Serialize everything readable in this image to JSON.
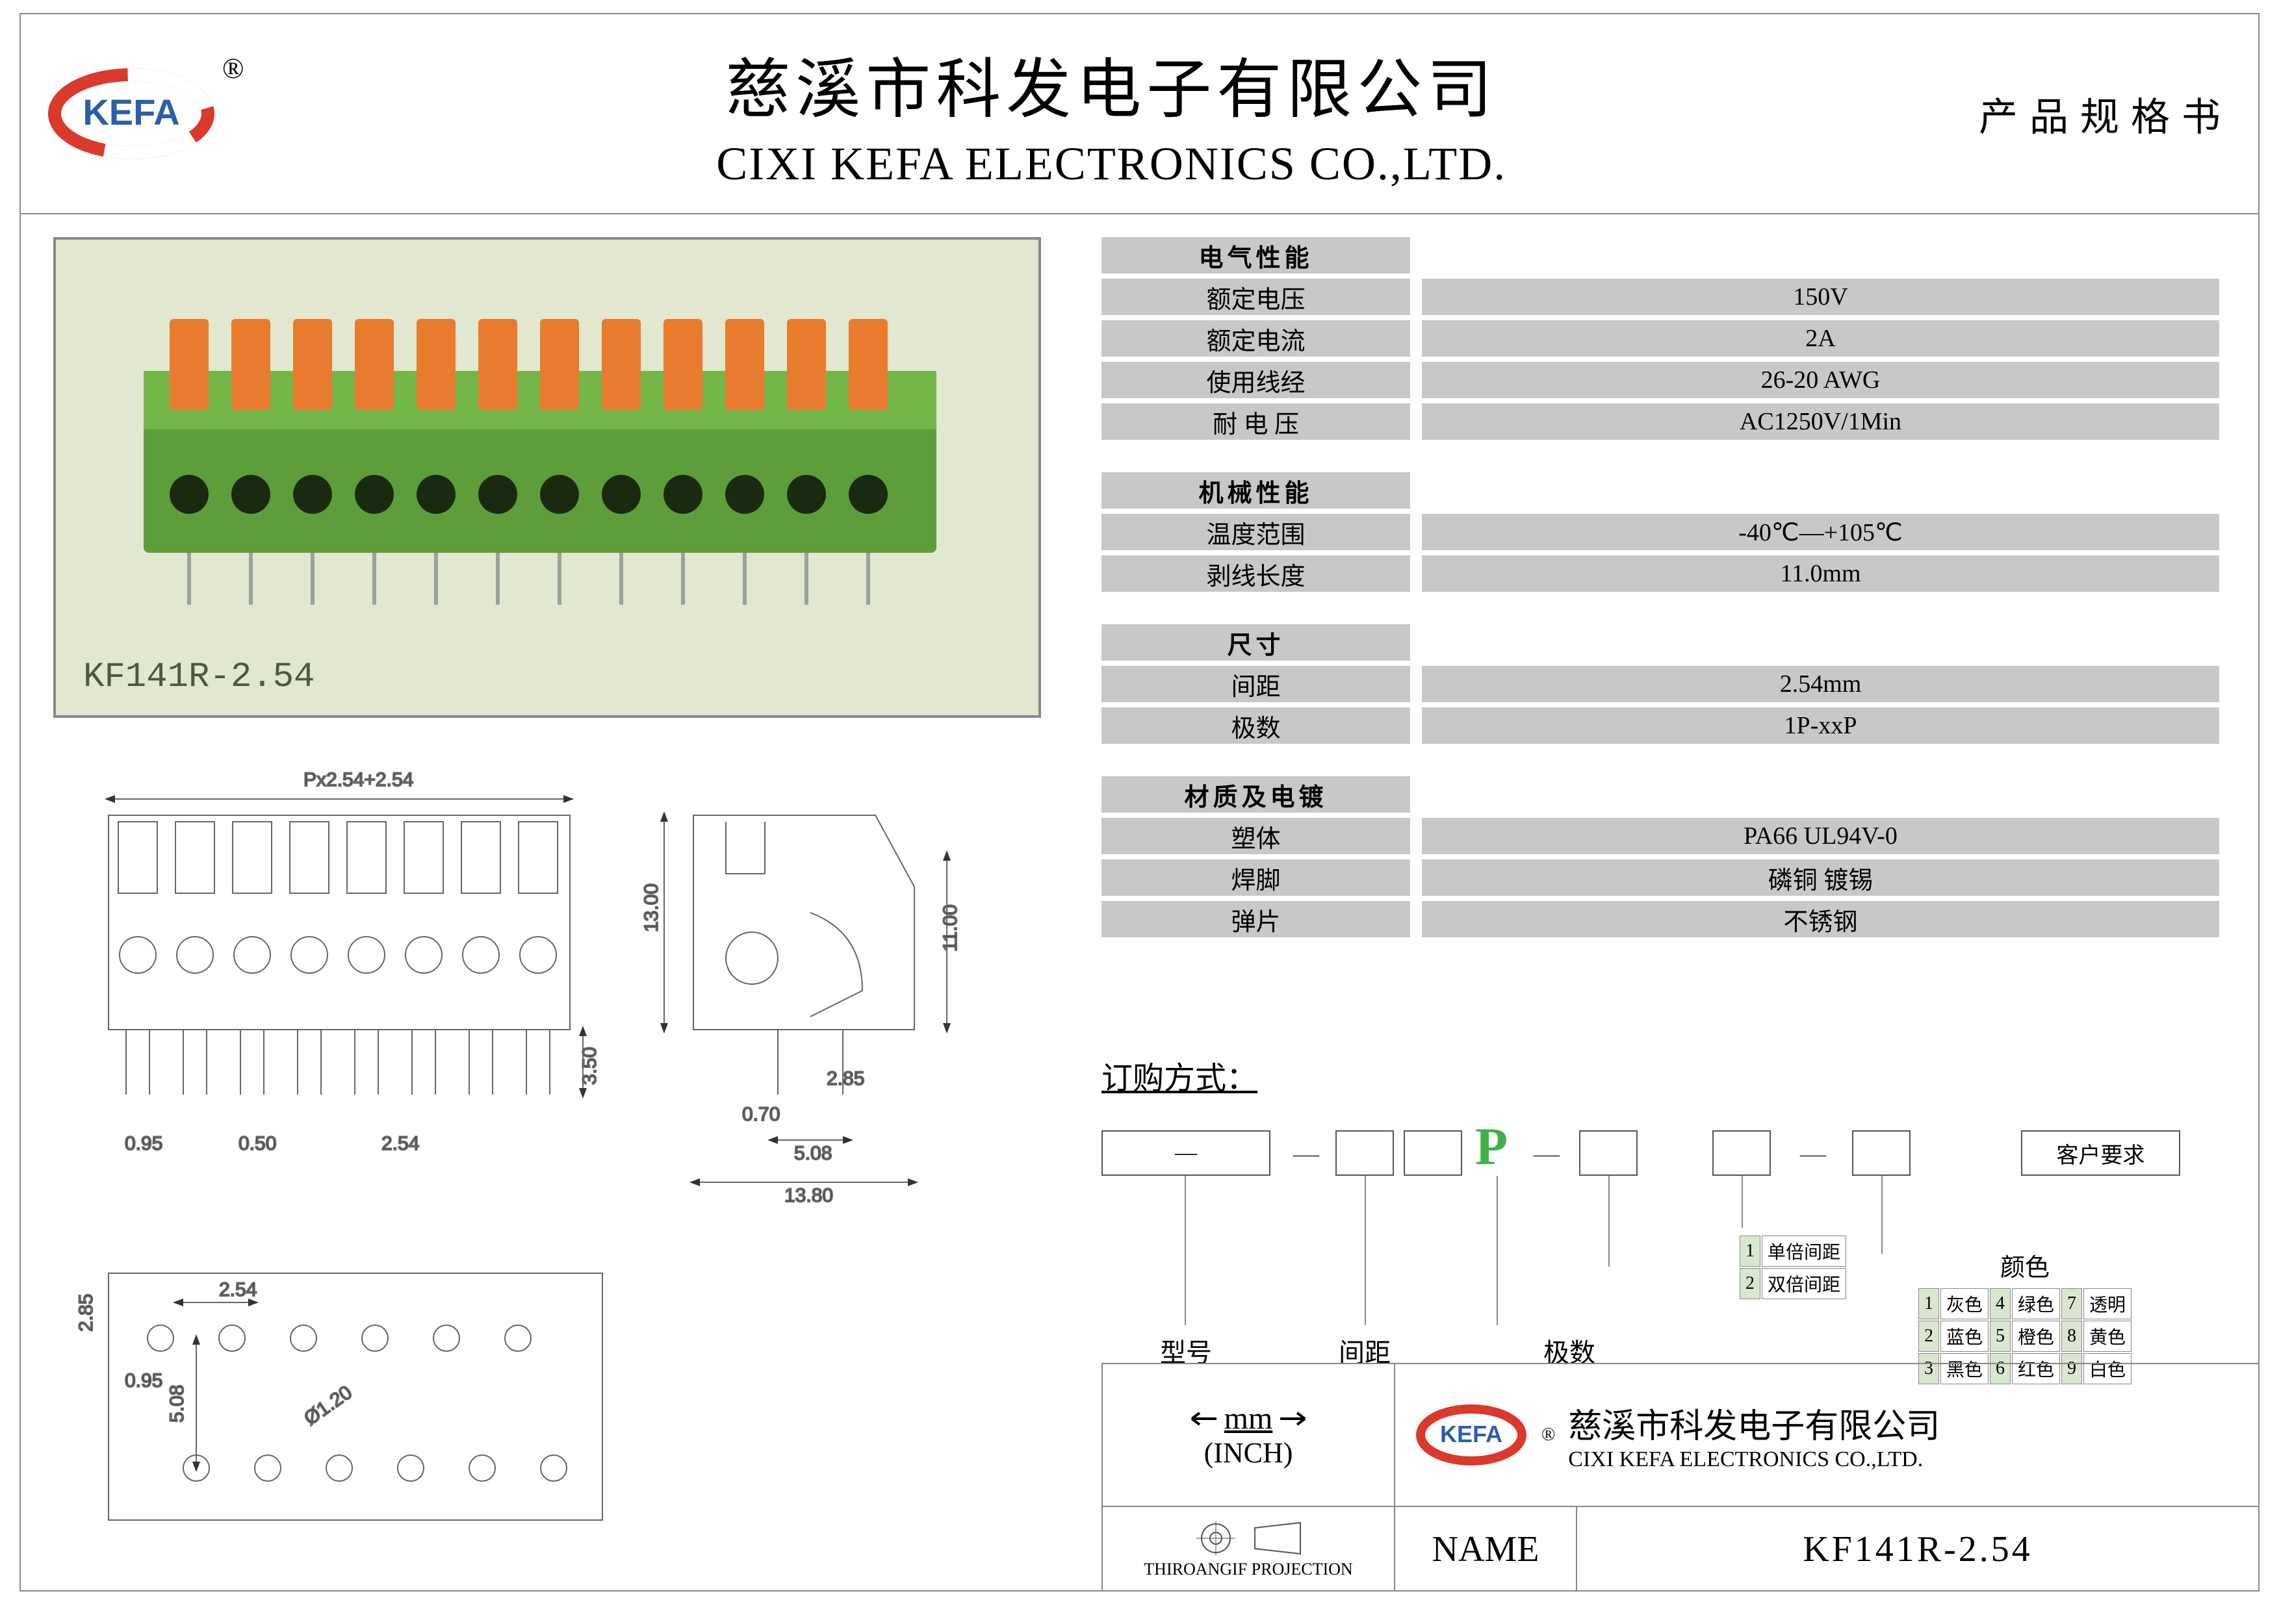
{
  "header": {
    "company_cn": "慈溪市科发电子有限公司",
    "company_en": "CIXI KEFA ELECTRONICS CO.,LTD.",
    "doc_type": "产品规格书",
    "logo_text": "KEFA",
    "registered": "®"
  },
  "product": {
    "part_number": "KF141R-2.54",
    "body_color": "#5e9e3a",
    "lever_color": "#e87b2e",
    "photo_bg": "#e2e8d0"
  },
  "spec_groups": [
    {
      "title": "电气性能",
      "rows": [
        {
          "label": "额定电压",
          "value": "150V"
        },
        {
          "label": "额定电流",
          "value": "2A"
        },
        {
          "label": "使用线经",
          "value": "26-20 AWG"
        },
        {
          "label": "耐 电 压",
          "value": "AC1250V/1Min"
        }
      ]
    },
    {
      "title": "机械性能",
      "rows": [
        {
          "label": "温度范围",
          "value": "-40℃—+105℃"
        },
        {
          "label": "剥线长度",
          "value": "11.0mm"
        }
      ]
    },
    {
      "title": "尺寸",
      "rows": [
        {
          "label": "间距",
          "value": "2.54mm"
        },
        {
          "label": "极数",
          "value": "1P-xxP"
        }
      ]
    },
    {
      "title": "材质及电镀",
      "rows": [
        {
          "label": "塑体",
          "value": "PA66  UL94V-0"
        },
        {
          "label": "焊脚",
          "value": "磷铜 镀锡"
        },
        {
          "label": "弹片",
          "value": "不锈钢"
        }
      ]
    }
  ],
  "drawing_dims": {
    "top_formula": "Px2.54+2.54",
    "pin_dia": "0.95",
    "pin_gap": "0.50",
    "pitch": "2.54",
    "pin_len": "3.50",
    "side_h": "13.00",
    "side_h2": "11.00",
    "side_pin": "0.70",
    "side_gap": "2.85",
    "row_gap": "5.08",
    "side_w": "13.80",
    "foot_row": "5.08",
    "foot_pitch": "2.54",
    "foot_y": "2.85",
    "foot_x": "0.95",
    "foot_dia": "Ø1.20"
  },
  "order": {
    "title": "订购方式：",
    "labels": {
      "model": "型号",
      "pitch": "间距",
      "poles": "极数",
      "customer_req": "客户要求",
      "color": "颜色"
    },
    "pitch_options": [
      {
        "n": "1",
        "t": "单倍间距"
      },
      {
        "n": "2",
        "t": "双倍间距"
      }
    ],
    "color_options": [
      {
        "n": "1",
        "t": "灰色"
      },
      {
        "n": "4",
        "t": "绿色"
      },
      {
        "n": "7",
        "t": "透明"
      },
      {
        "n": "2",
        "t": "蓝色"
      },
      {
        "n": "5",
        "t": "橙色"
      },
      {
        "n": "8",
        "t": "黄色"
      },
      {
        "n": "3",
        "t": "黑色"
      },
      {
        "n": "6",
        "t": "红色"
      },
      {
        "n": "9",
        "t": "白色"
      }
    ]
  },
  "footer": {
    "unit_mm": "mm",
    "unit_inch": "(INCH)",
    "projection": "THIROANGIF PROJECTION",
    "name_label": "NAME",
    "name_value": "KF141R-2.54",
    "company_cn": "慈溪市科发电子有限公司",
    "company_en": "CIXI KEFA ELECTRONICS CO.,LTD."
  },
  "colors": {
    "cell_bg": "#c8c8c8",
    "border": "#888888",
    "logo_red": "#d93a2b",
    "logo_blue": "#2b5fa8"
  }
}
